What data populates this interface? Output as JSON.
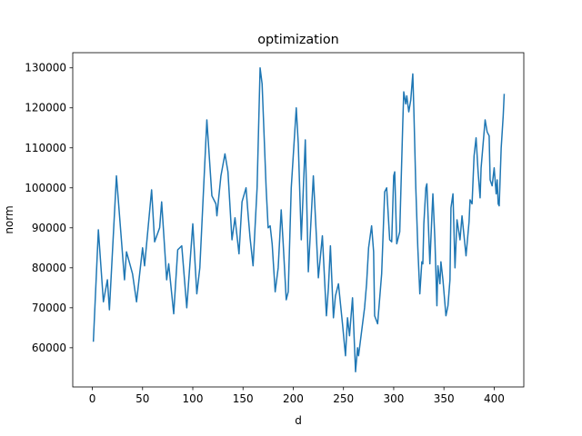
{
  "chart_data": {
    "type": "line",
    "title": "optimization",
    "xlabel": "d",
    "ylabel": "norm",
    "x": [
      1,
      6,
      11,
      15,
      17,
      24,
      32,
      34,
      40,
      44,
      50,
      52,
      59,
      62,
      67,
      69,
      74,
      76,
      81,
      85,
      89,
      94,
      100,
      104,
      107,
      114,
      119,
      123,
      124,
      128,
      132,
      135,
      139,
      142,
      146,
      149,
      153,
      155,
      157,
      160,
      164,
      167,
      169,
      173,
      175,
      177,
      179,
      182,
      185,
      188,
      190,
      193,
      195,
      198,
      203,
      205,
      208,
      212,
      215,
      220,
      223,
      225,
      229,
      233,
      235,
      237,
      240,
      242,
      245,
      249,
      252,
      254,
      256,
      259,
      262,
      264,
      265,
      268,
      271,
      273,
      275,
      278,
      280,
      281,
      284,
      288,
      291,
      293,
      296,
      298,
      300,
      301,
      303,
      306,
      309,
      310,
      312,
      313,
      315,
      317,
      319,
      320,
      322,
      324,
      326,
      328,
      329,
      330,
      332,
      333,
      335,
      336,
      338,
      339,
      341,
      343,
      344,
      346,
      347,
      349,
      352,
      354,
      356,
      357,
      359,
      361,
      363,
      366,
      368,
      372,
      375,
      376,
      378,
      380,
      382,
      384,
      386,
      387,
      391,
      393,
      395,
      396,
      398,
      400,
      402,
      403,
      404,
      405,
      407,
      409,
      410
    ],
    "series": [
      {
        "name": "norm",
        "color": "#1f77b4",
        "values": [
          61500,
          89500,
          71500,
          77000,
          69500,
          103000,
          77000,
          84000,
          78500,
          71500,
          85000,
          80500,
          99500,
          86500,
          90000,
          96500,
          77000,
          81000,
          68500,
          84500,
          85500,
          70000,
          91000,
          73500,
          80000,
          117000,
          98000,
          96000,
          93000,
          103000,
          108500,
          104000,
          87000,
          92500,
          83500,
          96500,
          100000,
          93500,
          87500,
          80500,
          100000,
          130000,
          126000,
          100000,
          90000,
          90500,
          86000,
          74000,
          80000,
          94500,
          86000,
          72000,
          74000,
          100000,
          120000,
          111000,
          87000,
          112000,
          79000,
          103000,
          88000,
          77500,
          88000,
          68000,
          75000,
          85500,
          67500,
          73000,
          76000,
          66000,
          58000,
          67500,
          63000,
          72500,
          54000,
          60000,
          58000,
          64000,
          70000,
          76000,
          85000,
          90500,
          84000,
          68000,
          66000,
          78500,
          99000,
          100000,
          87000,
          86500,
          103000,
          104000,
          86000,
          89000,
          116000,
          124000,
          121000,
          123000,
          119000,
          122000,
          128500,
          120000,
          100000,
          85000,
          73500,
          81500,
          81000,
          91000,
          100000,
          101000,
          87500,
          81000,
          93000,
          98500,
          87000,
          70500,
          80500,
          76000,
          81500,
          77000,
          68000,
          70500,
          77000,
          95000,
          98500,
          80000,
          92000,
          87000,
          93000,
          83000,
          91500,
          97000,
          96000,
          108000,
          112500,
          104000,
          97500,
          105000,
          117000,
          114000,
          113000,
          102000,
          100500,
          105000,
          98500,
          102000,
          96000,
          95500,
          110000,
          118000,
          123500
        ]
      }
    ],
    "xlim": [
      -19.5,
      429.5
    ],
    "ylim": [
      50200,
      133800
    ],
    "xticks": [
      0,
      50,
      100,
      150,
      200,
      250,
      300,
      350,
      400
    ],
    "yticks": [
      60000,
      70000,
      80000,
      90000,
      100000,
      110000,
      120000,
      130000
    ]
  }
}
